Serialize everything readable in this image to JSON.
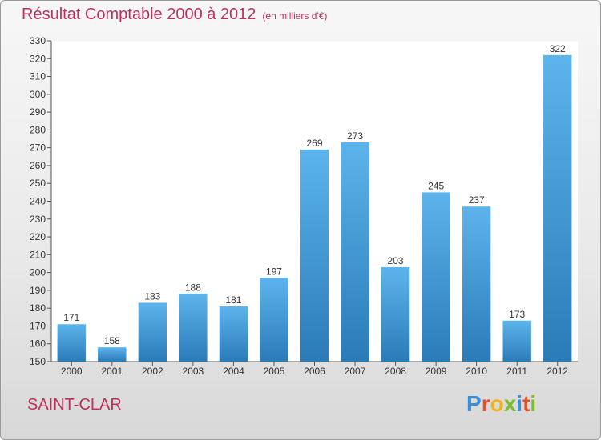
{
  "header": {
    "title": "Résultat Comptable 2000 à 2012",
    "unit": "(en milliers d'€)"
  },
  "footer": {
    "commune": "SAINT-CLAR",
    "brand_letters": [
      "P",
      "r",
      "o",
      "x",
      "i",
      "t",
      "i"
    ]
  },
  "colors": {
    "title": "#c0305a",
    "bar_top": "#5db4ec",
    "bar_bottom": "#2a7bb8",
    "brand": [
      "#3a8fd6",
      "#e8502a",
      "#f2b21c",
      "#7bbf2a",
      "#3a8fd6",
      "#e8502a",
      "#7bbf2a"
    ]
  },
  "chart_data": {
    "type": "bar",
    "title": "Résultat Comptable 2000 à 2012",
    "subtitle": "(en milliers d'€)",
    "xlabel": "",
    "ylabel": "",
    "categories": [
      "2000",
      "2001",
      "2002",
      "2003",
      "2004",
      "2005",
      "2006",
      "2007",
      "2008",
      "2009",
      "2010",
      "2011",
      "2012"
    ],
    "values": [
      171,
      158,
      183,
      188,
      181,
      197,
      269,
      273,
      203,
      245,
      237,
      173,
      322
    ],
    "ylim": [
      150,
      330
    ],
    "yticks": [
      150,
      160,
      170,
      180,
      190,
      200,
      210,
      220,
      230,
      240,
      250,
      260,
      270,
      280,
      290,
      300,
      310,
      320,
      330
    ],
    "grid": false,
    "legend": "none"
  }
}
